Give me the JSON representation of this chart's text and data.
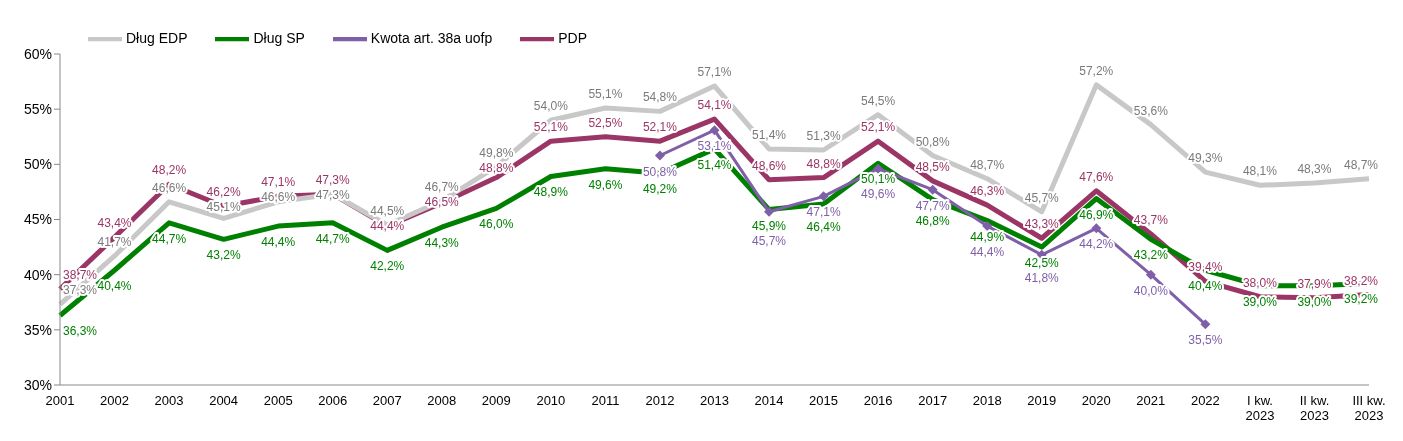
{
  "chart_data": {
    "type": "line",
    "categories": [
      "2001",
      "2002",
      "2003",
      "2004",
      "2005",
      "2006",
      "2007",
      "2008",
      "2009",
      "2010",
      "2011",
      "2012",
      "2013",
      "2014",
      "2015",
      "2016",
      "2017",
      "2018",
      "2019",
      "2020",
      "2021",
      "2022",
      "I kw. 2023",
      "II kw. 2023",
      "III kw. 2023"
    ],
    "series": [
      {
        "name": "PDP",
        "color": "#9b3566",
        "values": [
          38.7,
          43.4,
          48.2,
          46.2,
          47.1,
          47.3,
          44.4,
          46.5,
          48.8,
          52.1,
          52.5,
          52.1,
          54.1,
          48.6,
          48.8,
          52.1,
          48.5,
          46.3,
          43.3,
          47.6,
          43.7,
          39.4,
          38.0,
          37.9,
          38.2
        ],
        "value_labels": [
          "38,7%",
          "43,4%",
          "48,2%",
          "46,2%",
          "47,1%",
          "47,3%",
          "44,4%",
          "46,5%",
          "48,8%",
          "52,1%",
          "52,5%",
          "52,1%",
          "54,1%",
          "48,6%",
          "48,8%",
          "52,1%",
          "48,5%",
          "46,3%",
          "43,3%",
          "47,6%",
          "43,7%",
          "39,4%",
          "38,0%",
          "37,9%",
          "38,2%"
        ]
      },
      {
        "name": "Dług EDP",
        "color": "#c8c8c8",
        "values": [
          37.3,
          41.7,
          46.6,
          45.1,
          46.6,
          47.3,
          44.5,
          46.7,
          49.8,
          54.0,
          55.1,
          54.8,
          57.1,
          51.4,
          51.3,
          54.5,
          50.8,
          48.7,
          45.7,
          57.2,
          53.6,
          49.3,
          48.1,
          48.3,
          48.7
        ],
        "value_labels": [
          "37,3%",
          "41,7%",
          "46,6%",
          "45,1%",
          "46,6%",
          "47,3%",
          "44,5%",
          "46,7%",
          "49,8%",
          "54,0%",
          "55,1%",
          "54,8%",
          "57,1%",
          "51,4%",
          "51,3%",
          "54,5%",
          "50,8%",
          "48,7%",
          "45,7%",
          "57,2%",
          "53,6%",
          "49,3%",
          "48,1%",
          "48,3%",
          "48,7%"
        ]
      },
      {
        "name": "Dług SP",
        "color": "#008000",
        "values": [
          36.3,
          40.4,
          44.7,
          43.2,
          44.4,
          44.7,
          42.2,
          44.3,
          46.0,
          48.9,
          49.6,
          49.2,
          51.4,
          45.9,
          46.4,
          50.1,
          46.8,
          44.9,
          42.5,
          46.9,
          43.2,
          40.4,
          39.0,
          39.0,
          39.2
        ],
        "value_labels": [
          "36,3%",
          "40,4%",
          "44,7%",
          "43,2%",
          "44,4%",
          "44,7%",
          "42,2%",
          "44,3%",
          "46,0%",
          "48,9%",
          "49,6%",
          "49,2%",
          "51,4%",
          "45,9%",
          "46,4%",
          "50,1%",
          "46,8%",
          "44,9%",
          "42,5%",
          "46,9%",
          "43,2%",
          "40,4%",
          "39,0%",
          "39,0%",
          "39,2%"
        ]
      },
      {
        "name": "Kwota art. 38a uofp",
        "color": "#7f5fa8",
        "marker": "diamond",
        "values": [
          null,
          null,
          null,
          null,
          null,
          null,
          null,
          null,
          null,
          null,
          null,
          50.8,
          53.1,
          45.7,
          47.1,
          49.6,
          47.7,
          44.4,
          41.8,
          44.2,
          40.0,
          35.5,
          null,
          null,
          null
        ],
        "value_labels": [
          null,
          null,
          null,
          null,
          null,
          null,
          null,
          null,
          null,
          null,
          null,
          "50,8%",
          "53,1%",
          "45,7%",
          "47,1%",
          "49,6%",
          "47,7%",
          "44,4%",
          "41,8%",
          "44,2%",
          "40,0%",
          "35,5%",
          null,
          null,
          null
        ]
      }
    ],
    "ylim": [
      30,
      60
    ],
    "yticks": [
      {
        "value": 30,
        "label": "30%"
      },
      {
        "value": 35,
        "label": "35%"
      },
      {
        "value": 40,
        "label": "40%"
      },
      {
        "value": 45,
        "label": "45%"
      },
      {
        "value": 50,
        "label": "50%"
      },
      {
        "value": 55,
        "label": "55%"
      },
      {
        "value": 60,
        "label": "60%"
      }
    ],
    "grid": false,
    "legend": "top left"
  }
}
